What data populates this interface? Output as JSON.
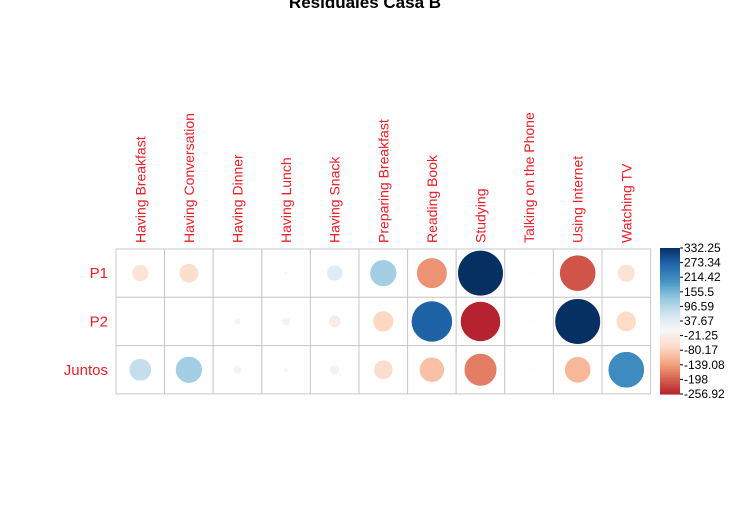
{
  "chart_data": {
    "type": "heatmap",
    "title": "Residuales Casa B",
    "columns": [
      "Having Breakfast",
      "Having Conversation",
      "Having Dinner",
      "Having Lunch",
      "Having Snack",
      "Preparing Breakfast",
      "Reading Book",
      "Studying",
      "Talking on the Phone",
      "Using Internet",
      "Watching TV"
    ],
    "rows": [
      "P1",
      "P2",
      "Juntos"
    ],
    "values": [
      [
        -45,
        -60,
        0,
        2,
        40,
        115,
        -150,
        332,
        1,
        -210,
        -50
      ],
      [
        0,
        0,
        -6,
        -12,
        -25,
        -70,
        270,
        -257,
        1,
        332,
        -65
      ],
      [
        80,
        115,
        12,
        4,
        -15,
        -60,
        -100,
        -170,
        1,
        -110,
        210
      ]
    ],
    "scale_limits": [
      -256.92,
      332.25
    ],
    "legend_ticks": [
      "332.25",
      "273.34",
      "214.42",
      "155.5",
      "96.59",
      "37.67",
      "-21.25",
      "-80.17",
      "-139.08",
      "-198",
      "-256.92"
    ],
    "legend_placement": "right",
    "colors": {
      "positive": "#053061",
      "neutral": "#f7f7f7",
      "negative": "#67001f",
      "grid": "#c9c9c9",
      "labels": "#e8202a"
    }
  }
}
